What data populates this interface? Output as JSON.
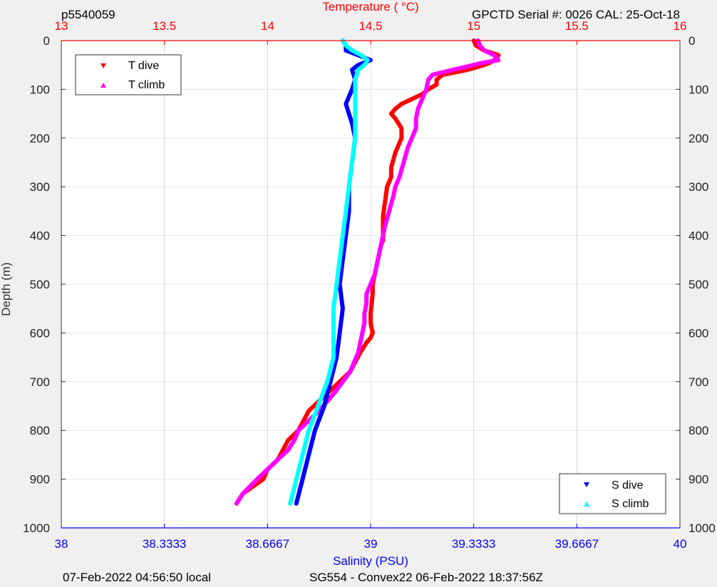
{
  "chart_data": {
    "type": "line",
    "top_left_label": "p5540059",
    "top_right_label": "GPCTD Serial #: 0026 CAL: 25-Oct-18",
    "top_axis_label": "Temperature (   °C)",
    "bottom_axis_label": "Salinity (PSU)",
    "left_axis_label": "Depth (m)",
    "footer_left": "07-Feb-2022 04:56:50 local",
    "footer_center": "SG554 - Convex22 06-Feb-2022 18:37:56Z",
    "ylim": [
      0,
      1000
    ],
    "y_reversed": true,
    "y_ticks": [
      "0",
      "100",
      "200",
      "300",
      "400",
      "500",
      "600",
      "700",
      "800",
      "900",
      "1000"
    ],
    "temperature_axis": {
      "range": [
        13,
        16
      ],
      "tick_values": [
        13,
        13.5,
        14,
        14.5,
        15,
        15.5,
        16
      ],
      "tick_labels": [
        "13",
        "13.5",
        "14",
        "14.5",
        "15",
        "15.5",
        "16"
      ],
      "color": "#ff0000"
    },
    "salinity_axis": {
      "range": [
        38,
        40
      ],
      "tick_values": [
        38,
        38.3333,
        38.6667,
        39,
        39.3333,
        39.6667,
        40
      ],
      "tick_labels": [
        "38",
        "38.3333",
        "38.6667",
        "39",
        "39.3333",
        "39.6667",
        "40"
      ],
      "color": "#0000ff"
    },
    "grid": true,
    "legend_top_left": [
      "T dive",
      "T climb"
    ],
    "legend_bottom_right": [
      "S dive",
      "S climb"
    ],
    "series": [
      {
        "name": "T dive",
        "axis": "temperature",
        "color": "#ff0000",
        "marker": "triangle-down",
        "depth": [
          0,
          10,
          20,
          30,
          40,
          45,
          50,
          60,
          70,
          80,
          90,
          100,
          110,
          120,
          130,
          140,
          150,
          160,
          180,
          200,
          230,
          260,
          280,
          300,
          330,
          360,
          380,
          410,
          420,
          440,
          460,
          480,
          500,
          520,
          560,
          580,
          600,
          610,
          620,
          640,
          680,
          720,
          760,
          800,
          820,
          860,
          880,
          900,
          930,
          950
        ],
        "values": [
          15.0,
          15.01,
          15.05,
          15.12,
          15.1,
          15.08,
          15.05,
          14.97,
          14.85,
          14.82,
          14.82,
          14.78,
          14.75,
          14.7,
          14.65,
          14.62,
          14.6,
          14.62,
          14.65,
          14.65,
          14.62,
          14.6,
          14.6,
          14.58,
          14.57,
          14.56,
          14.56,
          14.56,
          14.55,
          14.54,
          14.53,
          14.52,
          14.51,
          14.51,
          14.5,
          14.5,
          14.51,
          14.5,
          14.48,
          14.45,
          14.4,
          14.3,
          14.2,
          14.15,
          14.1,
          14.05,
          14.0,
          13.98,
          13.88,
          13.85
        ]
      },
      {
        "name": "T climb",
        "axis": "temperature",
        "color": "#ff00ff",
        "marker": "triangle-up",
        "depth": [
          950,
          930,
          900,
          880,
          860,
          840,
          820,
          800,
          780,
          760,
          720,
          680,
          640,
          620,
          600,
          580,
          560,
          540,
          520,
          500,
          480,
          460,
          440,
          420,
          400,
          380,
          350,
          320,
          300,
          280,
          250,
          220,
          200,
          180,
          160,
          140,
          120,
          100,
          80,
          70,
          60,
          50,
          45,
          40,
          30,
          20,
          10,
          0
        ],
        "values": [
          13.85,
          13.88,
          13.95,
          14.0,
          14.05,
          14.1,
          14.13,
          14.15,
          14.2,
          14.25,
          14.33,
          14.4,
          14.44,
          14.45,
          14.46,
          14.47,
          14.47,
          14.48,
          14.48,
          14.5,
          14.52,
          14.53,
          14.54,
          14.55,
          14.56,
          14.57,
          14.59,
          14.61,
          14.62,
          14.64,
          14.66,
          14.68,
          14.7,
          14.72,
          14.72,
          14.73,
          14.75,
          14.77,
          14.78,
          14.8,
          14.9,
          15.0,
          15.05,
          15.12,
          15.1,
          15.05,
          15.03,
          15.02
        ]
      },
      {
        "name": "S dive",
        "axis": "salinity",
        "color": "#0000ff",
        "marker": "triangle-down",
        "depth": [
          0,
          10,
          20,
          30,
          40,
          50,
          60,
          80,
          100,
          130,
          150,
          170,
          200,
          250,
          300,
          350,
          400,
          450,
          500,
          550,
          600,
          650,
          700,
          750,
          800,
          850,
          900,
          950
        ],
        "values": [
          38.91,
          38.92,
          38.92,
          38.96,
          39.0,
          38.96,
          38.94,
          38.95,
          38.94,
          38.92,
          38.93,
          38.94,
          38.95,
          38.94,
          38.93,
          38.93,
          38.92,
          38.91,
          38.9,
          38.91,
          38.9,
          38.89,
          38.87,
          38.85,
          38.82,
          38.8,
          38.78,
          38.76
        ]
      },
      {
        "name": "S climb",
        "axis": "salinity",
        "color": "#00ffff",
        "marker": "triangle-up",
        "depth": [
          950,
          900,
          850,
          800,
          750,
          700,
          650,
          600,
          550,
          500,
          450,
          400,
          350,
          300,
          250,
          200,
          150,
          100,
          80,
          60,
          50,
          40,
          30,
          20,
          10,
          0
        ],
        "values": [
          38.74,
          38.76,
          38.78,
          38.8,
          38.83,
          38.86,
          38.88,
          38.88,
          38.88,
          38.89,
          38.9,
          38.91,
          38.92,
          38.93,
          38.94,
          38.95,
          38.95,
          38.95,
          38.95,
          38.96,
          38.98,
          38.99,
          38.97,
          38.94,
          38.92,
          38.91
        ]
      }
    ]
  }
}
